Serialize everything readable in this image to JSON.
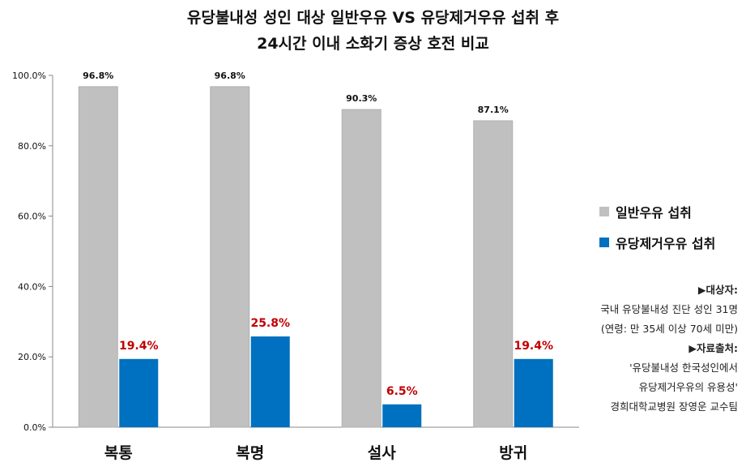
{
  "title": {
    "line1": "유당불내성 성인 대상  일반우유 VS 유당제거우유 섭취 후",
    "line2": "24시간 이내 소화기 증상 호전 비교"
  },
  "chart_data": {
    "type": "bar",
    "title": "유당불내성 성인 대상  일반우유 VS 유당제거우유 섭취 후 24시간 이내 소화기 증상 호전 비교",
    "categories": [
      "복통",
      "복명",
      "설사",
      "방귀"
    ],
    "series": [
      {
        "name": "일반우유 섭취",
        "values": [
          96.8,
          96.8,
          90.3,
          87.1
        ],
        "labels": [
          "96.8%",
          "96.8%",
          "90.3%",
          "87.1%"
        ],
        "color": "#c0c0c0"
      },
      {
        "name": "유당제거우유 섭취",
        "values": [
          19.4,
          25.8,
          6.5,
          19.4
        ],
        "labels": [
          "19.4%",
          "25.8%",
          "6.5%",
          "19.4%"
        ],
        "color": "#0070c0"
      }
    ],
    "yticks": [
      "0.0%",
      "20.0%",
      "40.0%",
      "60.0%",
      "80.0%",
      "100.0%"
    ],
    "ylim": [
      0,
      100
    ],
    "grid": false,
    "legend_position": "right",
    "xlabel": "",
    "ylabel": ""
  },
  "label_colors": {
    "series1": "#111111",
    "series2": "#c00000"
  },
  "notes": {
    "subject_heading": "▶대상자:",
    "subject_line1": "국내 유당불내성 진단 성인 31명",
    "subject_line2": "(연령: 만 35세 이상 70세 미만)",
    "source_heading": "▶자료출처:",
    "source_line1": "'유당불내성 한국성인에서",
    "source_line2": "유당제거우유의 유용성'",
    "source_line3": "경희대학교병원 장영운 교수팀"
  }
}
